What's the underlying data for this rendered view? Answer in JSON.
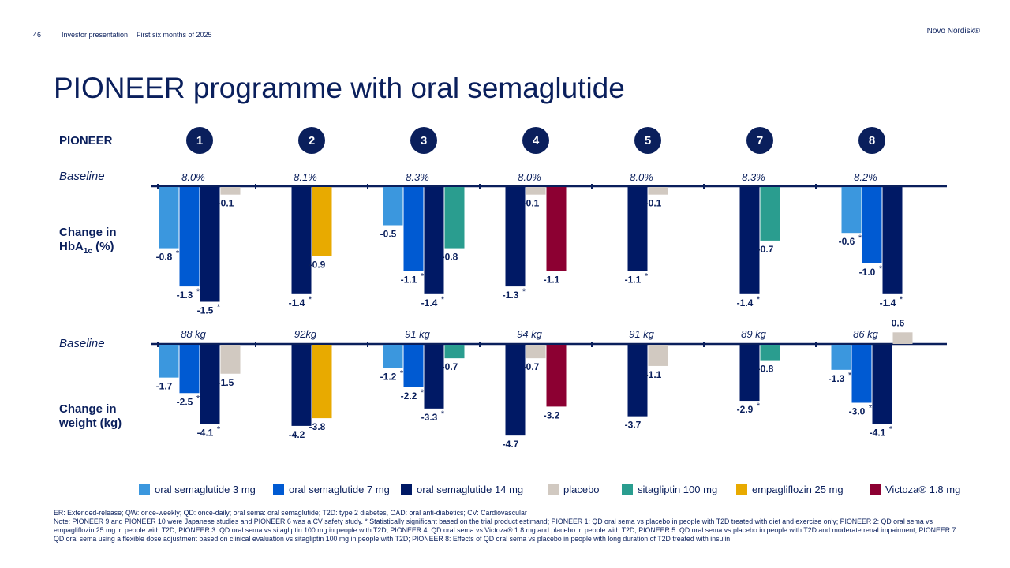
{
  "header": {
    "page_number": "46",
    "presentation": "Investor presentation",
    "period": "First six months of 2025",
    "brand": "Novo Nordisk®"
  },
  "title": "PIONEER programme with oral semaglutide",
  "row_labels": {
    "pioneer": "PIONEER",
    "baseline_hba1c": "Baseline",
    "change_hba1c_line1": "Change in",
    "change_hba1c_line2_main": "HbA",
    "change_hba1c_line2_sub": "1c",
    "change_hba1c_line2_unit": " (%)",
    "baseline_weight": "Baseline",
    "change_weight_line1": "Change in",
    "change_weight_line2": "weight (kg)"
  },
  "trials": [
    "1",
    "2",
    "3",
    "4",
    "5",
    "7",
    "8"
  ],
  "colors": {
    "navy": "#0a1f5c",
    "sema3": "#3b97de",
    "sema7": "#005ad2",
    "sema14": "#001965",
    "placebo": "#d1c9c1",
    "sitagliptin": "#2a9d8f",
    "empagliflozin": "#e8aa00",
    "victoza": "#8c0032"
  },
  "legend": [
    {
      "key": "sema3",
      "label": "oral semaglutide 3 mg"
    },
    {
      "key": "sema7",
      "label": "oral semaglutide 7 mg"
    },
    {
      "key": "sema14",
      "label": "oral semaglutide 14 mg"
    },
    {
      "key": "placebo",
      "label": "placebo"
    },
    {
      "key": "sitagliptin",
      "label": "sitagliptin 100 mg"
    },
    {
      "key": "empagliflozin",
      "label": "empagliflozin 25 mg"
    },
    {
      "key": "victoza",
      "label": "Victoza® 1.8 mg"
    }
  ],
  "chart_data": [
    {
      "type": "bar",
      "title": "Change in HbA1c (%)",
      "ylabel": "Change in HbA1c (%)",
      "ylim": [
        -1.5,
        0
      ],
      "categories": [
        "PIONEER 1",
        "PIONEER 2",
        "PIONEER 3",
        "PIONEER 4",
        "PIONEER 5",
        "PIONEER 7",
        "PIONEER 8"
      ],
      "baselines": [
        "8.0%",
        "8.1%",
        "8.3%",
        "8.0%",
        "8.0%",
        "8.3%",
        "8.2%"
      ],
      "groups": [
        {
          "trial": "1",
          "bars": [
            {
              "series": "sema3",
              "value": -0.8,
              "label": "-0.8",
              "sig": true
            },
            {
              "series": "sema7",
              "value": -1.3,
              "label": "-1.3",
              "sig": true
            },
            {
              "series": "sema14",
              "value": -1.5,
              "label": "-1.5",
              "sig": true
            },
            {
              "series": "placebo",
              "value": -0.1,
              "label": "-0.1",
              "sig": false
            }
          ]
        },
        {
          "trial": "2",
          "bars": [
            {
              "series": "sema14",
              "value": -1.4,
              "label": "-1.4",
              "sig": true
            },
            {
              "series": "empagliflozin",
              "value": -0.9,
              "label": "-0.9",
              "sig": false
            }
          ]
        },
        {
          "trial": "3",
          "bars": [
            {
              "series": "sema3",
              "value": -0.5,
              "label": "-0.5",
              "sig": false
            },
            {
              "series": "sema7",
              "value": -1.1,
              "label": "-1.1",
              "sig": true
            },
            {
              "series": "sema14",
              "value": -1.4,
              "label": "-1.4",
              "sig": true
            },
            {
              "series": "sitagliptin",
              "value": -0.8,
              "label": "-0.8",
              "sig": false
            }
          ]
        },
        {
          "trial": "4",
          "bars": [
            {
              "series": "sema14",
              "value": -1.3,
              "label": "-1.3",
              "sig": true
            },
            {
              "series": "placebo",
              "value": -0.1,
              "label": "-0.1",
              "sig": false
            },
            {
              "series": "victoza",
              "value": -1.1,
              "label": "-1.1",
              "sig": false
            }
          ]
        },
        {
          "trial": "5",
          "bars": [
            {
              "series": "sema14",
              "value": -1.1,
              "label": "-1.1",
              "sig": true
            },
            {
              "series": "placebo",
              "value": -0.1,
              "label": "-0.1",
              "sig": false
            }
          ]
        },
        {
          "trial": "7",
          "bars": [
            {
              "series": "sema14",
              "value": -1.4,
              "label": "-1.4",
              "sig": true
            },
            {
              "series": "sitagliptin",
              "value": -0.7,
              "label": "-0.7",
              "sig": false
            }
          ]
        },
        {
          "trial": "8",
          "bars": [
            {
              "series": "sema3",
              "value": -0.6,
              "label": "-0.6",
              "sig": true
            },
            {
              "series": "sema7",
              "value": -1.0,
              "label": "-1.0",
              "sig": true
            },
            {
              "series": "sema14",
              "value": -1.4,
              "label": "-1.4",
              "sig": true
            }
          ]
        }
      ]
    },
    {
      "type": "bar",
      "title": "Change in weight (kg)",
      "ylabel": "Change in weight (kg)",
      "ylim": [
        -4.7,
        0.6
      ],
      "categories": [
        "PIONEER 1",
        "PIONEER 2",
        "PIONEER 3",
        "PIONEER 4",
        "PIONEER 5",
        "PIONEER 7",
        "PIONEER 8"
      ],
      "baselines": [
        "88 kg",
        "92kg",
        "91 kg",
        "94 kg",
        "91 kg",
        "89 kg",
        "86 kg"
      ],
      "groups": [
        {
          "trial": "1",
          "bars": [
            {
              "series": "sema3",
              "value": -1.7,
              "label": "-1.7",
              "sig": false
            },
            {
              "series": "sema7",
              "value": -2.5,
              "label": "-2.5",
              "sig": true
            },
            {
              "series": "sema14",
              "value": -4.1,
              "label": "-4.1",
              "sig": true
            },
            {
              "series": "placebo",
              "value": -1.5,
              "label": "-1.5",
              "sig": false
            }
          ]
        },
        {
          "trial": "2",
          "bars": [
            {
              "series": "sema14",
              "value": -4.2,
              "label": "-4.2",
              "sig": false
            },
            {
              "series": "empagliflozin",
              "value": -3.8,
              "label": "-3.8",
              "sig": false
            }
          ]
        },
        {
          "trial": "3",
          "bars": [
            {
              "series": "sema3",
              "value": -1.2,
              "label": "-1.2",
              "sig": true
            },
            {
              "series": "sema7",
              "value": -2.2,
              "label": "-2.2",
              "sig": true
            },
            {
              "series": "sema14",
              "value": -3.3,
              "label": "-3.3",
              "sig": true
            },
            {
              "series": "sitagliptin",
              "value": -0.7,
              "label": "-0.7",
              "sig": false
            }
          ]
        },
        {
          "trial": "4",
          "bars": [
            {
              "series": "sema14",
              "value": -4.7,
              "label": "-4.7",
              "sig": false
            },
            {
              "series": "placebo",
              "value": -0.7,
              "label": "-0.7",
              "sig": false
            },
            {
              "series": "victoza",
              "value": -3.2,
              "label": "-3.2",
              "sig": false
            }
          ]
        },
        {
          "trial": "5",
          "bars": [
            {
              "series": "sema14",
              "value": -3.7,
              "label": "-3.7",
              "sig": false
            },
            {
              "series": "placebo",
              "value": -1.1,
              "label": "-1.1",
              "sig": false
            }
          ]
        },
        {
          "trial": "7",
          "bars": [
            {
              "series": "sema14",
              "value": -2.9,
              "label": "-2.9",
              "sig": true
            },
            {
              "series": "sitagliptin",
              "value": -0.8,
              "label": "-0.8",
              "sig": false
            }
          ]
        },
        {
          "trial": "8",
          "bars": [
            {
              "series": "sema3",
              "value": -1.3,
              "label": "-1.3",
              "sig": true
            },
            {
              "series": "sema7",
              "value": -3.0,
              "label": "-3.0",
              "sig": true
            },
            {
              "series": "sema14",
              "value": -4.1,
              "label": "-4.1",
              "sig": true
            },
            {
              "series": "placebo",
              "value": 0.6,
              "label": "0.6",
              "sig": false
            }
          ]
        }
      ]
    }
  ],
  "footer": {
    "abbrev": "ER: Extended-release; QW: once-weekly; QD: once-daily; oral sema: oral semaglutide; T2D: type 2 diabetes, OAD: oral anti-diabetics; CV: Cardiovascular",
    "note": "Note: PIONEER 9 and PIONEER 10 were Japanese studies and PIONEER 6 was a CV safety study. * Statistically significant based on the trial product estimand; PIONEER 1: QD oral sema vs placebo in people with T2D treated with diet and exercise only; PIONEER 2: QD oral sema vs empagliflozin 25 mg in people with T2D; PIONEER 3: QD oral sema vs sitagliptin 100 mg in people with T2D; PIONEER 4: QD oral sema vs Victoza® 1.8 mg and placebo in people with T2D; PIONEER 5: QD oral sema vs placebo in people with T2D and moderate renal impairment; PIONEER 7: QD oral sema using a flexible dose adjustment based on clinical evaluation vs sitagliptin 100 mg in people with T2D; PIONEER 8: Effects of QD oral sema vs placebo in people with long duration of T2D treated with insulin"
  }
}
